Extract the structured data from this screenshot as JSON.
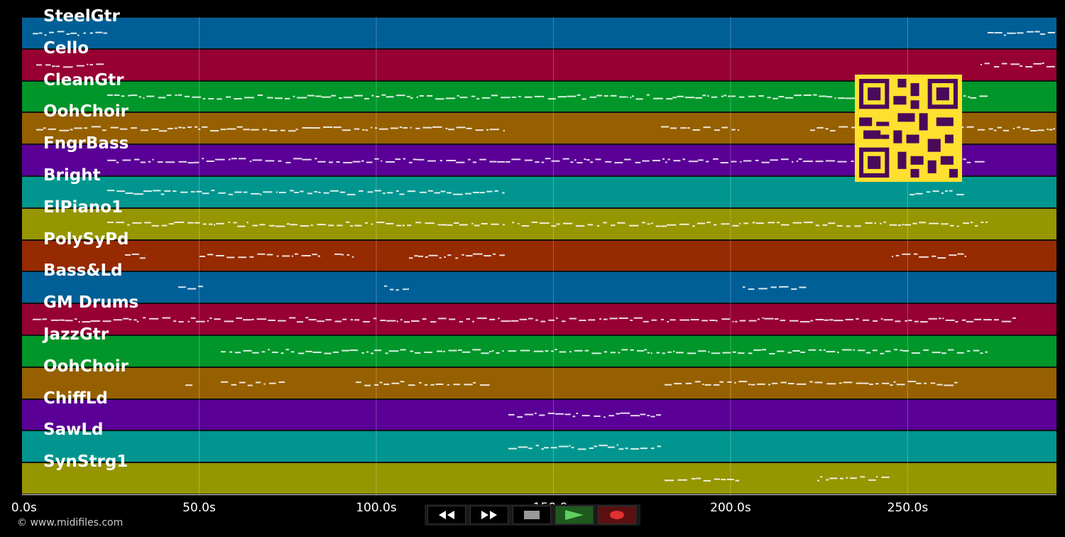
{
  "tracks": [
    {
      "name": "SteelGtr",
      "color": "#005f96"
    },
    {
      "name": "Cello",
      "color": "#960033"
    },
    {
      "name": "CleanGtr",
      "color": "#00962a"
    },
    {
      "name": "OohChoir",
      "color": "#966000"
    },
    {
      "name": "FngrBass",
      "color": "#5a0096"
    },
    {
      "name": "Bright",
      "color": "#00968f"
    },
    {
      "name": "ElPiano1",
      "color": "#969600"
    },
    {
      "name": "PolySyPd",
      "color": "#962a00"
    },
    {
      "name": "Bass&Ld",
      "color": "#005f96"
    },
    {
      "name": "GM Drums",
      "color": "#960033"
    },
    {
      "name": "JazzGtr",
      "color": "#00962a"
    },
    {
      "name": "OohChoir",
      "color": "#966000"
    },
    {
      "name": "ChiffLd",
      "color": "#5a0096"
    },
    {
      "name": "SawLd",
      "color": "#00968f"
    },
    {
      "name": "SynStrg1",
      "color": "#969600"
    }
  ],
  "timeline": {
    "max_seconds": 292,
    "ticks": [
      "0.0s",
      "50.0s",
      "100.0s",
      "150.0s",
      "200.0s",
      "250.0s"
    ],
    "tick_values": [
      0,
      50,
      100,
      150,
      200,
      250
    ]
  },
  "transport": {
    "buttons": [
      {
        "name": "rewind-button",
        "icon": "rewind-icon"
      },
      {
        "name": "fast-forward-button",
        "icon": "fast-forward-icon"
      },
      {
        "name": "stop-button",
        "icon": "stop-icon"
      },
      {
        "name": "play-button",
        "icon": "play-icon"
      },
      {
        "name": "record-button",
        "icon": "record-icon"
      }
    ]
  },
  "copyright": "© www.midifiles.com",
  "qr_code_icon": "qr-code-icon"
}
